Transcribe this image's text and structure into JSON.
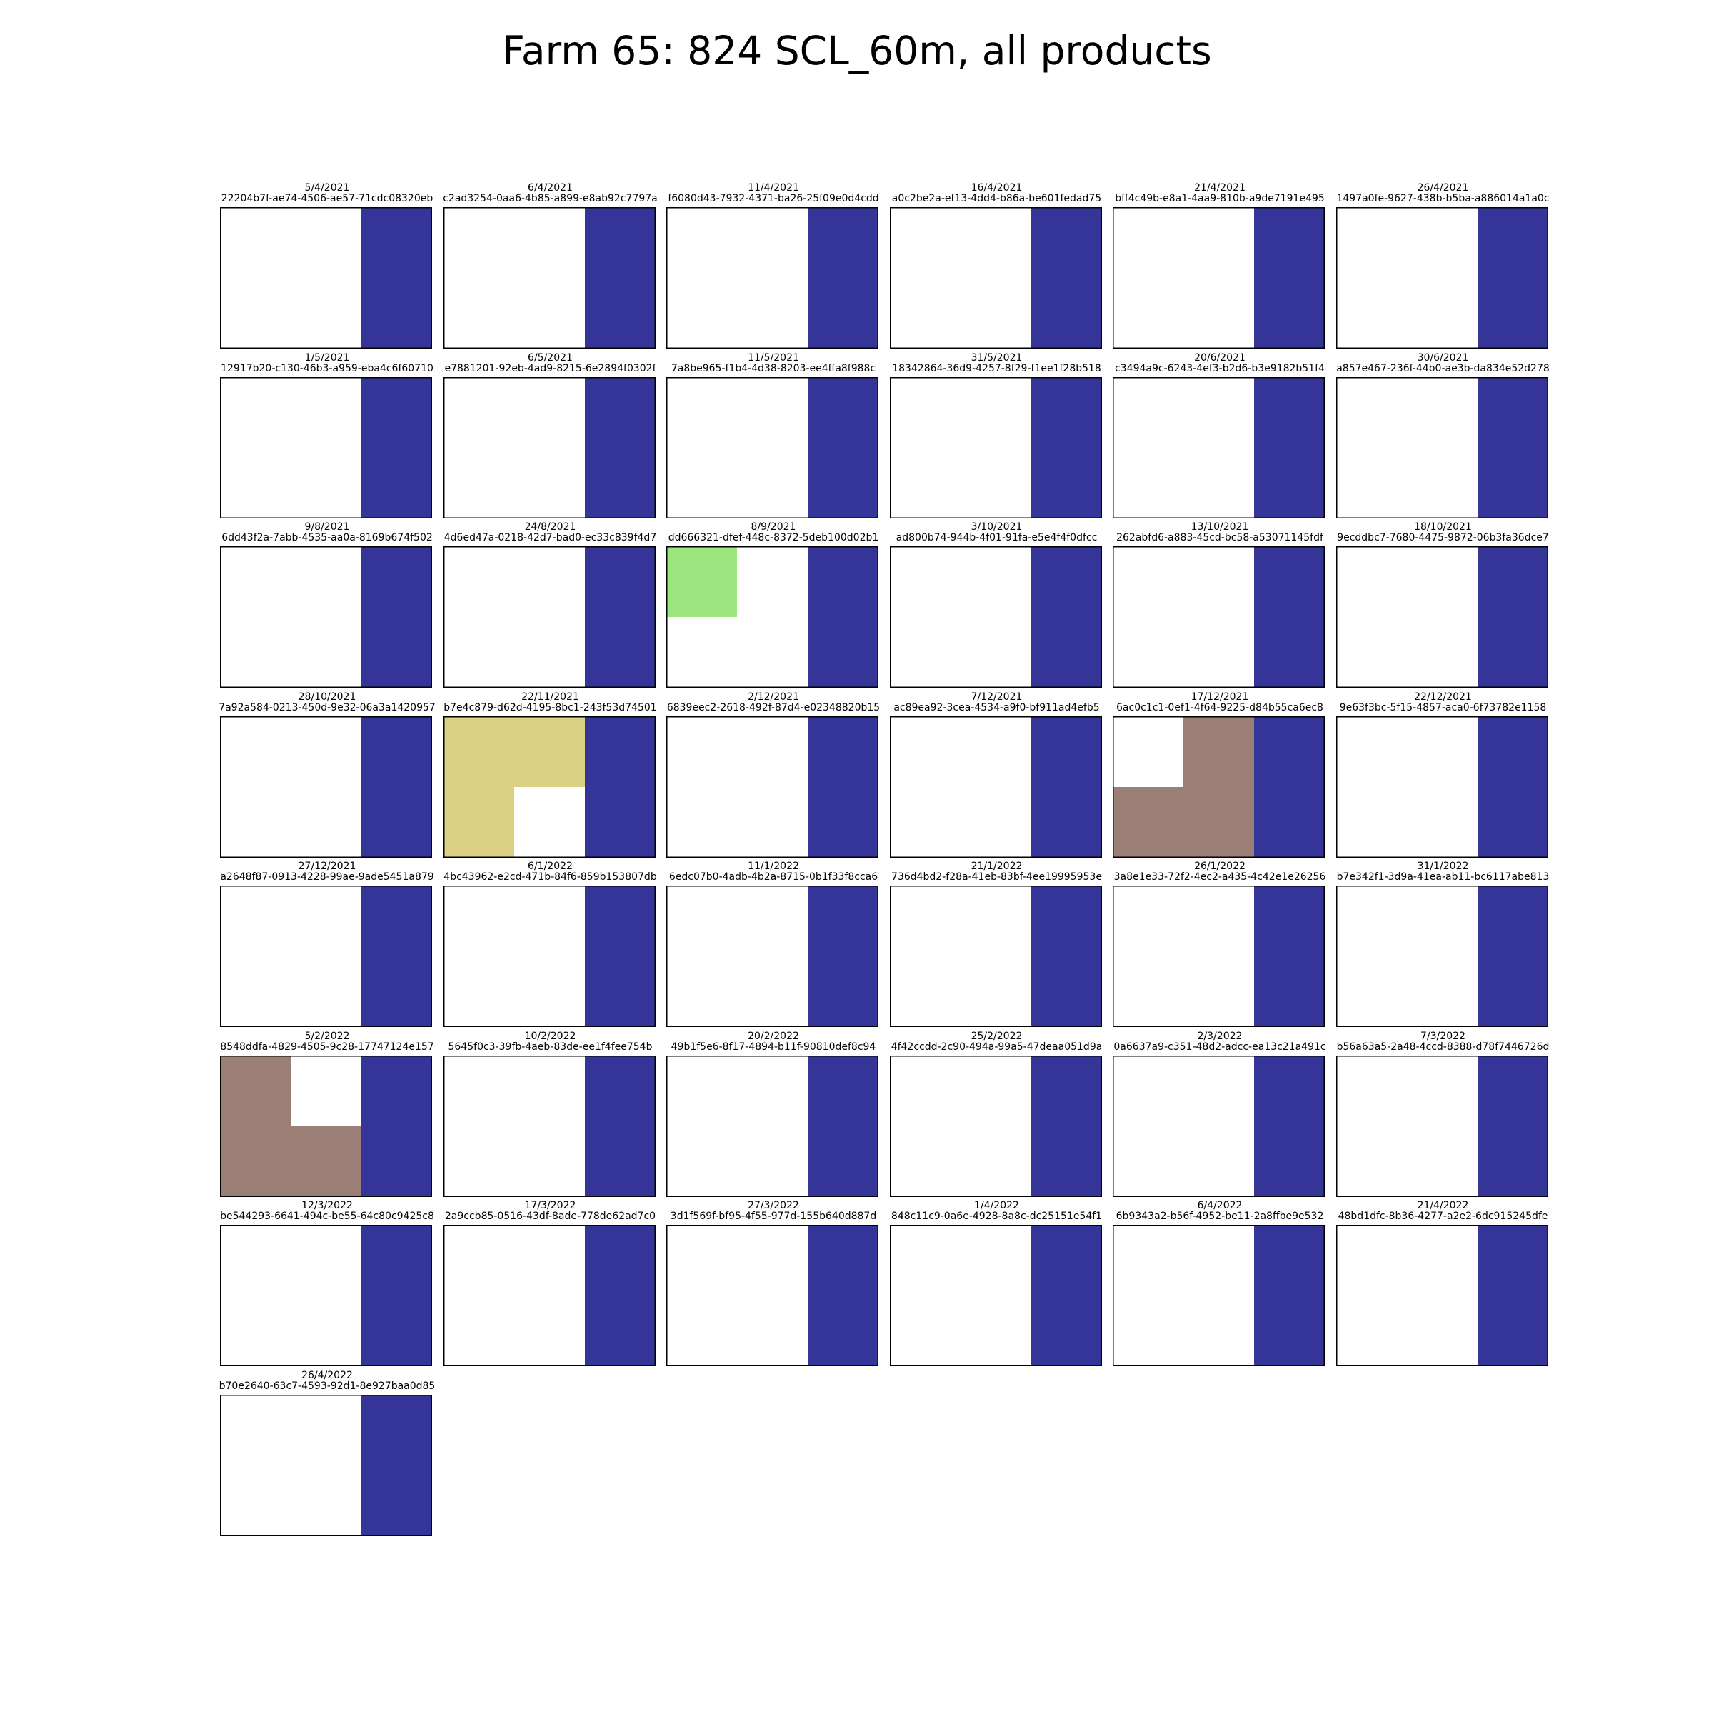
{
  "figure": {
    "title": "Farm 65: 824 SCL_60m, all products"
  },
  "colors": {
    "background": "#ffffff",
    "water": "#353599",
    "vegetation": "#9de67f",
    "not_vegetated": "#dbd184",
    "cloud_shadow": "#9b7e75",
    "border": "#000000"
  },
  "chart_data": {
    "type": "heatmap",
    "grid": {
      "rows": 2,
      "cols": 3
    },
    "legend": "none",
    "panels": [
      {
        "date": "5/4/2021",
        "id": "22204b7f-ae74-4506-ae57-71cdc08320eb",
        "cells": [
          [
            "bg",
            "bg",
            "water"
          ],
          [
            "bg",
            "bg",
            "water"
          ]
        ]
      },
      {
        "date": "6/4/2021",
        "id": "c2ad3254-0aa6-4b85-a899-e8ab92c7797a",
        "cells": [
          [
            "bg",
            "bg",
            "water"
          ],
          [
            "bg",
            "bg",
            "water"
          ]
        ]
      },
      {
        "date": "11/4/2021",
        "id": "f6080d43-7932-4371-ba26-25f09e0d4cdd",
        "cells": [
          [
            "bg",
            "bg",
            "water"
          ],
          [
            "bg",
            "bg",
            "water"
          ]
        ]
      },
      {
        "date": "16/4/2021",
        "id": "a0c2be2a-ef13-4dd4-b86a-be601fedad75",
        "cells": [
          [
            "bg",
            "bg",
            "water"
          ],
          [
            "bg",
            "bg",
            "water"
          ]
        ]
      },
      {
        "date": "21/4/2021",
        "id": "bff4c49b-e8a1-4aa9-810b-a9de7191e495",
        "cells": [
          [
            "bg",
            "bg",
            "water"
          ],
          [
            "bg",
            "bg",
            "water"
          ]
        ]
      },
      {
        "date": "26/4/2021",
        "id": "1497a0fe-9627-438b-b5ba-a886014a1a0c",
        "cells": [
          [
            "bg",
            "bg",
            "water"
          ],
          [
            "bg",
            "bg",
            "water"
          ]
        ]
      },
      {
        "date": "1/5/2021",
        "id": "12917b20-c130-46b3-a959-eba4c6f60710",
        "cells": [
          [
            "bg",
            "bg",
            "water"
          ],
          [
            "bg",
            "bg",
            "water"
          ]
        ]
      },
      {
        "date": "6/5/2021",
        "id": "e7881201-92eb-4ad9-8215-6e2894f0302f",
        "cells": [
          [
            "bg",
            "bg",
            "water"
          ],
          [
            "bg",
            "bg",
            "water"
          ]
        ]
      },
      {
        "date": "11/5/2021",
        "id": "7a8be965-f1b4-4d38-8203-ee4ffa8f988c",
        "cells": [
          [
            "bg",
            "bg",
            "water"
          ],
          [
            "bg",
            "bg",
            "water"
          ]
        ]
      },
      {
        "date": "31/5/2021",
        "id": "18342864-36d9-4257-8f29-f1ee1f28b518",
        "cells": [
          [
            "bg",
            "bg",
            "water"
          ],
          [
            "bg",
            "bg",
            "water"
          ]
        ]
      },
      {
        "date": "20/6/2021",
        "id": "c3494a9c-6243-4ef3-b2d6-b3e9182b51f4",
        "cells": [
          [
            "bg",
            "bg",
            "water"
          ],
          [
            "bg",
            "bg",
            "water"
          ]
        ]
      },
      {
        "date": "30/6/2021",
        "id": "a857e467-236f-44b0-ae3b-da834e52d278",
        "cells": [
          [
            "bg",
            "bg",
            "water"
          ],
          [
            "bg",
            "bg",
            "water"
          ]
        ]
      },
      {
        "date": "9/8/2021",
        "id": "6dd43f2a-7abb-4535-aa0a-8169b674f502",
        "cells": [
          [
            "bg",
            "bg",
            "water"
          ],
          [
            "bg",
            "bg",
            "water"
          ]
        ]
      },
      {
        "date": "24/8/2021",
        "id": "4d6ed47a-0218-42d7-bad0-ec33c839f4d7",
        "cells": [
          [
            "bg",
            "bg",
            "water"
          ],
          [
            "bg",
            "bg",
            "water"
          ]
        ]
      },
      {
        "date": "8/9/2021",
        "id": "dd666321-dfef-448c-8372-5deb100d02b1",
        "cells": [
          [
            "vegetation",
            "bg",
            "water"
          ],
          [
            "bg",
            "bg",
            "water"
          ]
        ]
      },
      {
        "date": "3/10/2021",
        "id": "ad800b74-944b-4f01-91fa-e5e4f4f0dfcc",
        "cells": [
          [
            "bg",
            "bg",
            "water"
          ],
          [
            "bg",
            "bg",
            "water"
          ]
        ]
      },
      {
        "date": "13/10/2021",
        "id": "262abfd6-a883-45cd-bc58-a53071145fdf",
        "cells": [
          [
            "bg",
            "bg",
            "water"
          ],
          [
            "bg",
            "bg",
            "water"
          ]
        ]
      },
      {
        "date": "18/10/2021",
        "id": "9ecddbc7-7680-4475-9872-06b3fa36dce7",
        "cells": [
          [
            "bg",
            "bg",
            "water"
          ],
          [
            "bg",
            "bg",
            "water"
          ]
        ]
      },
      {
        "date": "28/10/2021",
        "id": "7a92a584-0213-450d-9e32-06a3a1420957",
        "cells": [
          [
            "bg",
            "bg",
            "water"
          ],
          [
            "bg",
            "bg",
            "water"
          ]
        ]
      },
      {
        "date": "22/11/2021",
        "id": "b7e4c879-d62d-4195-8bc1-243f53d74501",
        "cells": [
          [
            "not_vegetated",
            "not_vegetated",
            "water"
          ],
          [
            "not_vegetated",
            "bg",
            "water"
          ]
        ]
      },
      {
        "date": "2/12/2021",
        "id": "6839eec2-2618-492f-87d4-e02348820b15",
        "cells": [
          [
            "bg",
            "bg",
            "water"
          ],
          [
            "bg",
            "bg",
            "water"
          ]
        ]
      },
      {
        "date": "7/12/2021",
        "id": "ac89ea92-3cea-4534-a9f0-bf911ad4efb5",
        "cells": [
          [
            "bg",
            "bg",
            "water"
          ],
          [
            "bg",
            "bg",
            "water"
          ]
        ]
      },
      {
        "date": "17/12/2021",
        "id": "6ac0c1c1-0ef1-4f64-9225-d84b55ca6ec8",
        "cells": [
          [
            "bg",
            "cloud_shadow",
            "water"
          ],
          [
            "cloud_shadow",
            "cloud_shadow",
            "water"
          ]
        ]
      },
      {
        "date": "22/12/2021",
        "id": "9e63f3bc-5f15-4857-aca0-6f73782e1158",
        "cells": [
          [
            "bg",
            "bg",
            "water"
          ],
          [
            "bg",
            "bg",
            "water"
          ]
        ]
      },
      {
        "date": "27/12/2021",
        "id": "a2648f87-0913-4228-99ae-9ade5451a879",
        "cells": [
          [
            "bg",
            "bg",
            "water"
          ],
          [
            "bg",
            "bg",
            "water"
          ]
        ]
      },
      {
        "date": "6/1/2022",
        "id": "4bc43962-e2cd-471b-84f6-859b153807db",
        "cells": [
          [
            "bg",
            "bg",
            "water"
          ],
          [
            "bg",
            "bg",
            "water"
          ]
        ]
      },
      {
        "date": "11/1/2022",
        "id": "6edc07b0-4adb-4b2a-8715-0b1f33f8cca6",
        "cells": [
          [
            "bg",
            "bg",
            "water"
          ],
          [
            "bg",
            "bg",
            "water"
          ]
        ]
      },
      {
        "date": "21/1/2022",
        "id": "736d4bd2-f28a-41eb-83bf-4ee19995953e",
        "cells": [
          [
            "bg",
            "bg",
            "water"
          ],
          [
            "bg",
            "bg",
            "water"
          ]
        ]
      },
      {
        "date": "26/1/2022",
        "id": "3a8e1e33-72f2-4ec2-a435-4c42e1e26256",
        "cells": [
          [
            "bg",
            "bg",
            "water"
          ],
          [
            "bg",
            "bg",
            "water"
          ]
        ]
      },
      {
        "date": "31/1/2022",
        "id": "b7e342f1-3d9a-41ea-ab11-bc6117abe813",
        "cells": [
          [
            "bg",
            "bg",
            "water"
          ],
          [
            "bg",
            "bg",
            "water"
          ]
        ]
      },
      {
        "date": "5/2/2022",
        "id": "8548ddfa-4829-4505-9c28-17747124e157",
        "cells": [
          [
            "cloud_shadow",
            "bg",
            "water"
          ],
          [
            "cloud_shadow",
            "cloud_shadow",
            "water"
          ]
        ]
      },
      {
        "date": "10/2/2022",
        "id": "5645f0c3-39fb-4aeb-83de-ee1f4fee754b",
        "cells": [
          [
            "bg",
            "bg",
            "water"
          ],
          [
            "bg",
            "bg",
            "water"
          ]
        ]
      },
      {
        "date": "20/2/2022",
        "id": "49b1f5e6-8f17-4894-b11f-90810def8c94",
        "cells": [
          [
            "bg",
            "bg",
            "water"
          ],
          [
            "bg",
            "bg",
            "water"
          ]
        ]
      },
      {
        "date": "25/2/2022",
        "id": "4f42ccdd-2c90-494a-99a5-47deaa051d9a",
        "cells": [
          [
            "bg",
            "bg",
            "water"
          ],
          [
            "bg",
            "bg",
            "water"
          ]
        ]
      },
      {
        "date": "2/3/2022",
        "id": "0a6637a9-c351-48d2-adcc-ea13c21a491c",
        "cells": [
          [
            "bg",
            "bg",
            "water"
          ],
          [
            "bg",
            "bg",
            "water"
          ]
        ]
      },
      {
        "date": "7/3/2022",
        "id": "b56a63a5-2a48-4ccd-8388-d78f7446726d",
        "cells": [
          [
            "bg",
            "bg",
            "water"
          ],
          [
            "bg",
            "bg",
            "water"
          ]
        ]
      },
      {
        "date": "12/3/2022",
        "id": "be544293-6641-494c-be55-64c80c9425c8",
        "cells": [
          [
            "bg",
            "bg",
            "water"
          ],
          [
            "bg",
            "bg",
            "water"
          ]
        ]
      },
      {
        "date": "17/3/2022",
        "id": "2a9ccb85-0516-43df-8ade-778de62ad7c0",
        "cells": [
          [
            "bg",
            "bg",
            "water"
          ],
          [
            "bg",
            "bg",
            "water"
          ]
        ]
      },
      {
        "date": "27/3/2022",
        "id": "3d1f569f-bf95-4f55-977d-155b640d887d",
        "cells": [
          [
            "bg",
            "bg",
            "water"
          ],
          [
            "bg",
            "bg",
            "water"
          ]
        ]
      },
      {
        "date": "1/4/2022",
        "id": "848c11c9-0a6e-4928-8a8c-dc25151e54f1",
        "cells": [
          [
            "bg",
            "bg",
            "water"
          ],
          [
            "bg",
            "bg",
            "water"
          ]
        ]
      },
      {
        "date": "6/4/2022",
        "id": "6b9343a2-b56f-4952-be11-2a8ffbe9e532",
        "cells": [
          [
            "bg",
            "bg",
            "water"
          ],
          [
            "bg",
            "bg",
            "water"
          ]
        ]
      },
      {
        "date": "21/4/2022",
        "id": "48bd1dfc-8b36-4277-a2e2-6dc915245dfe",
        "cells": [
          [
            "bg",
            "bg",
            "water"
          ],
          [
            "bg",
            "bg",
            "water"
          ]
        ]
      },
      {
        "date": "26/4/2022",
        "id": "b70e2640-63c7-4593-92d1-8e927baa0d85",
        "cells": [
          [
            "bg",
            "bg",
            "water"
          ],
          [
            "bg",
            "bg",
            "water"
          ]
        ]
      }
    ]
  }
}
